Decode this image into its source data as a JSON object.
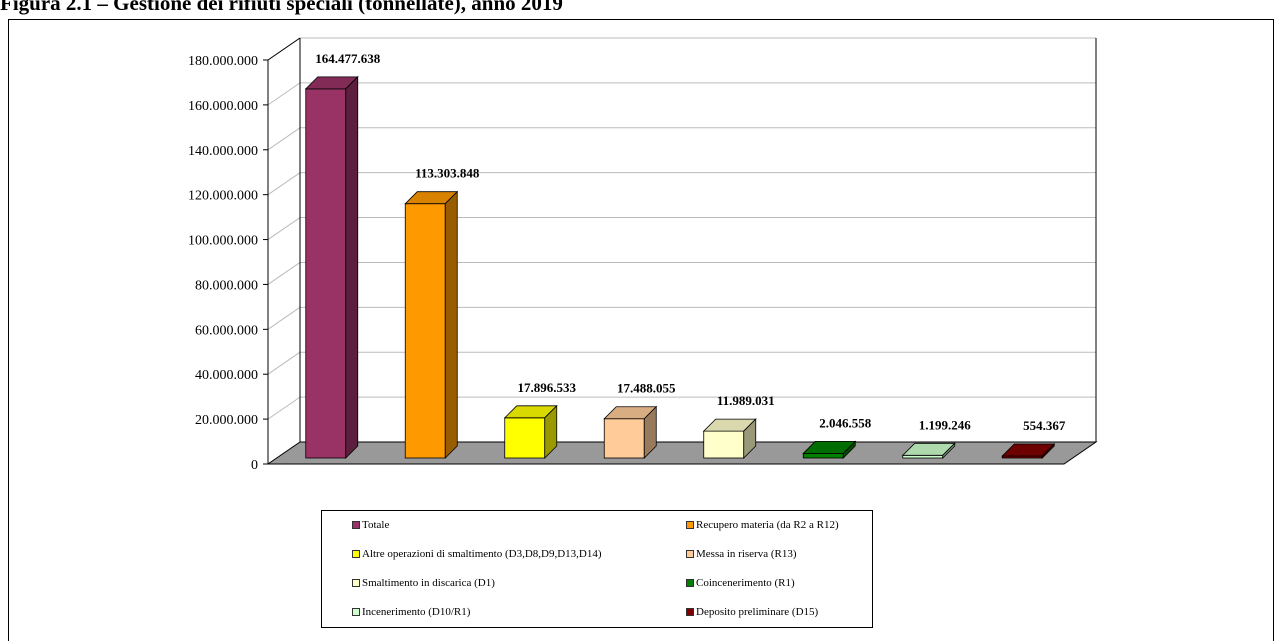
{
  "title": "Figura 2.1 – Gestione dei rifiuti speciali (tonnellate), anno 2019",
  "chart_data": {
    "type": "bar",
    "categories": [
      "Totale",
      "Recupero materia (da R2 a R12)",
      "Altre operazioni di smaltimento (D3,D8,D9,D13,D14)",
      "Messa in riserva (R13)",
      "Smaltimento in discarica (D1)",
      "Coincenerimento (R1)",
      "Incenerimento (D10/R1)",
      "Deposito preliminare (D15)"
    ],
    "values": [
      164477638,
      113303848,
      17896533,
      17488055,
      11989031,
      2046558,
      1199246,
      554367
    ],
    "value_labels": [
      "164.477.638",
      "113.303.848",
      "17.896.533",
      "17.488.055",
      "11.989.031",
      "2.046.558",
      "1.199.246",
      "554.367"
    ],
    "colors": [
      "#993366",
      "#ff9900",
      "#ffff00",
      "#ffcc99",
      "#ffffcc",
      "#008000",
      "#ccffcc",
      "#800000"
    ],
    "yticks": [
      "0",
      "20.000.000",
      "40.000.000",
      "60.000.000",
      "80.000.000",
      "100.000.000",
      "120.000.000",
      "140.000.000",
      "160.000.000",
      "180.000.000"
    ],
    "ylim": [
      0,
      180000000
    ],
    "grid": true,
    "three_d": true,
    "legend_position": "bottom"
  },
  "legend": {
    "items": [
      "Totale",
      "Recupero materia (da R2 a R12)",
      "Altre operazioni di smaltimento (D3,D8,D9,D13,D14)",
      "Messa in riserva (R13)",
      "Smaltimento in discarica (D1)",
      "Coincenerimento (R1)",
      "Incenerimento (D10/R1)",
      "Deposito preliminare (D15)"
    ],
    "display_items": [
      "Totale",
      "Recupero materia (da R2 a R12)",
      "Altre operazioni di smaltimento (D3,D8,D9,D13,D14)",
      "Messa in riserva (R13)",
      "Smaltimento in discarica (D1)",
      "Coincenerimento (R1)",
      "Incenerimento (D10/R1)",
      "Deposito preliminare (D15)"
    ]
  }
}
